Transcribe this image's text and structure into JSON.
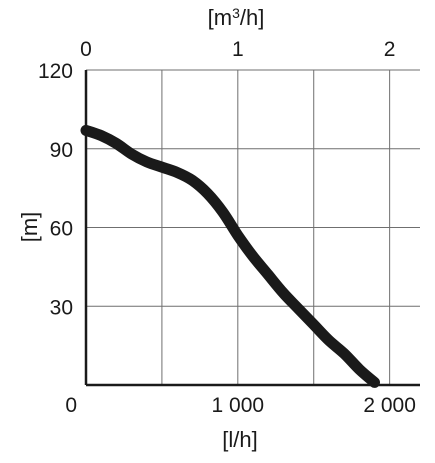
{
  "chart_data": {
    "type": "line",
    "title": "",
    "ylabel": "[m]",
    "xlabel_bottom": "[l/h]",
    "xlabel_top_prefix": "[m",
    "xlabel_top_sup": "3",
    "xlabel_top_suffix": "/h]",
    "xlim": [
      0,
      2200
    ],
    "ylim": [
      0,
      120
    ],
    "grid": true,
    "legend": "none",
    "x_ticks_bottom": [
      {
        "value": 0,
        "label": "0"
      },
      {
        "value": 1000,
        "label": "1 000"
      },
      {
        "value": 2000,
        "label": "2 000"
      }
    ],
    "x_ticks_bottom_grid": [
      500,
      1000,
      1500,
      2000
    ],
    "x_ticks_top": [
      {
        "value": 0,
        "label": "0"
      },
      {
        "value": 1000,
        "label": "1"
      },
      {
        "value": 2000,
        "label": "2"
      }
    ],
    "y_ticks": [
      {
        "value": 0,
        "label": "0"
      },
      {
        "value": 30,
        "label": "30"
      },
      {
        "value": 60,
        "label": "60"
      },
      {
        "value": 90,
        "label": "90"
      },
      {
        "value": 120,
        "label": "120"
      }
    ],
    "series": [
      {
        "color": "#1a1a1a",
        "x": [
          0,
          100,
          200,
          300,
          400,
          500,
          600,
          700,
          800,
          900,
          1000,
          1100,
          1200,
          1300,
          1400,
          1500,
          1600,
          1700,
          1800,
          1900
        ],
        "y": [
          97,
          95,
          92,
          88,
          85,
          83,
          81,
          78,
          73,
          66,
          57,
          49,
          42,
          35,
          29,
          23,
          17,
          12,
          6,
          1
        ]
      }
    ]
  }
}
